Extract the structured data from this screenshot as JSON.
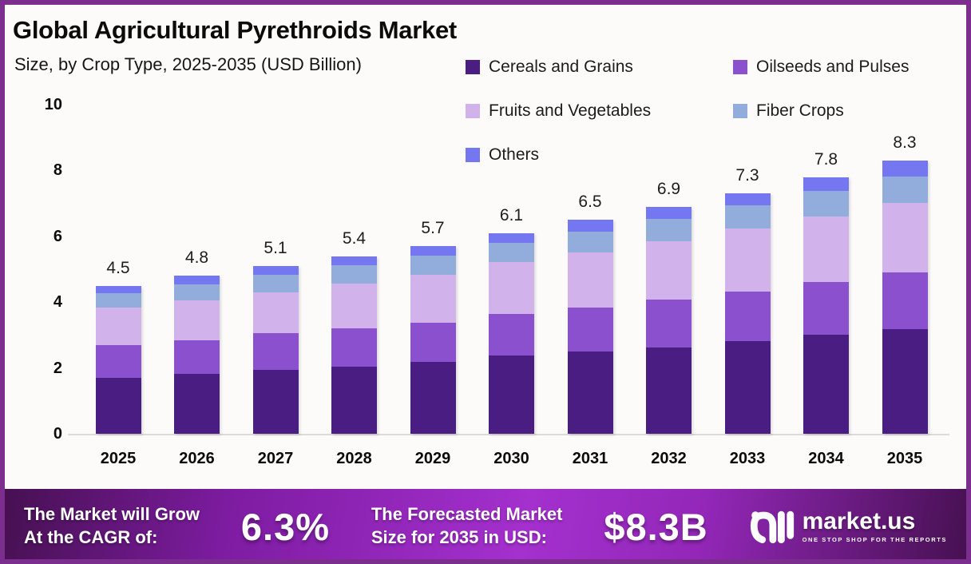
{
  "frame_color": "#7C2E8F",
  "header": {
    "title": "Global Agricultural Pyrethroids Market",
    "subtitle": "Size, by Crop Type, 2025-2035 (USD Billion)"
  },
  "chart_data": {
    "type": "bar",
    "stacked": true,
    "title": "Global Agricultural Pyrethroids Market Size, by Crop Type, 2025-2035 (USD Billion)",
    "categories": [
      "2025",
      "2026",
      "2027",
      "2028",
      "2029",
      "2030",
      "2031",
      "2032",
      "2033",
      "2034",
      "2035"
    ],
    "series": [
      {
        "name": "Cereals and Grains",
        "color": "#4A1D83",
        "values": [
          1.7,
          1.83,
          1.95,
          2.05,
          2.18,
          2.37,
          2.49,
          2.62,
          2.82,
          3.0,
          3.17
        ]
      },
      {
        "name": "Oilseeds and Pulses",
        "color": "#8A50CE",
        "values": [
          1.0,
          1.0,
          1.1,
          1.15,
          1.2,
          1.26,
          1.34,
          1.45,
          1.51,
          1.61,
          1.73
        ]
      },
      {
        "name": "Fruits and Vegetables",
        "color": "#D2B2EA",
        "values": [
          1.14,
          1.22,
          1.25,
          1.37,
          1.45,
          1.58,
          1.68,
          1.79,
          1.9,
          2.0,
          2.12
        ]
      },
      {
        "name": "Fiber Crops",
        "color": "#92ADDC",
        "values": [
          0.44,
          0.48,
          0.52,
          0.54,
          0.58,
          0.6,
          0.63,
          0.68,
          0.7,
          0.78,
          0.8
        ]
      },
      {
        "name": "Others",
        "color": "#7477F0",
        "values": [
          0.22,
          0.27,
          0.28,
          0.29,
          0.29,
          0.29,
          0.36,
          0.36,
          0.37,
          0.41,
          0.48
        ]
      }
    ],
    "totals": [
      4.5,
      4.8,
      5.1,
      5.4,
      5.7,
      6.1,
      6.5,
      6.9,
      7.3,
      7.8,
      8.3
    ],
    "total_labels": [
      "4.5",
      "4.8",
      "5.1",
      "5.4",
      "5.7",
      "6.1",
      "6.5",
      "6.9",
      "7.3",
      "7.8",
      "8.3"
    ],
    "xlabel": "",
    "ylabel": "",
    "ylim": [
      0,
      10
    ],
    "yticks": [
      0,
      2,
      4,
      6,
      8,
      10
    ],
    "grid": false,
    "legend_position": "top-right"
  },
  "footer": {
    "cagr_text": [
      "The Market will Grow",
      "At the CAGR of:"
    ],
    "cagr_value": "6.3%",
    "forecast_text": [
      "The Forecasted Market",
      "Size for 2035 in USD:"
    ],
    "forecast_value": "$8.3B",
    "brand_name": "market.us",
    "brand_tagline": "ONE STOP SHOP FOR THE REPORTS"
  }
}
